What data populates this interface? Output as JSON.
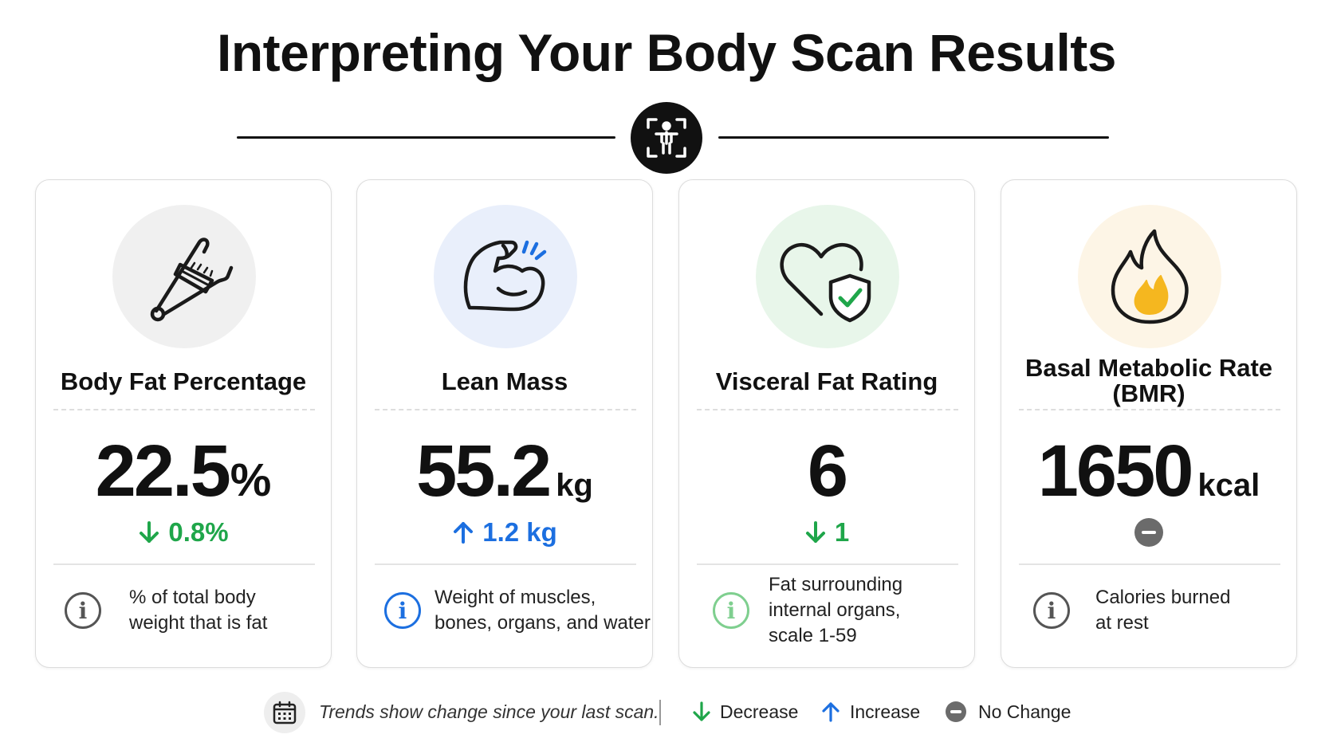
{
  "title": "Interpreting Your Body Scan Results",
  "header_icon": "body-scan-icon",
  "cards": [
    {
      "title": "Body Fat Percentage",
      "value": "22.5",
      "unit": "%",
      "trend_direction": "decrease",
      "trend_text": "0.8%",
      "icon": "caliper-icon",
      "icon_bg": "#f0f0f0",
      "description_lines": [
        "% of total body",
        "weight that is fat"
      ],
      "info_color": "#555555"
    },
    {
      "title": "Lean Mass",
      "value": "55.2",
      "unit": "kg",
      "trend_direction": "increase",
      "trend_text": "1.2 kg",
      "icon": "flexed-bicep-icon",
      "icon_bg": "#e9effb",
      "description_lines": [
        "Weight of muscles,",
        "bones, organs, and water"
      ],
      "info_color": "#1c6fe0"
    },
    {
      "title": "Visceral Fat Rating",
      "value": "6",
      "unit": "",
      "trend_direction": "decrease",
      "trend_text": "1",
      "icon": "heart-shield-icon",
      "icon_bg": "#e8f6ea",
      "description_lines": [
        "Fat surrounding",
        "internal organs,",
        "scale 1-59"
      ],
      "info_color": "#7fcf8f"
    },
    {
      "title_lines": [
        "Basal Metabolic Rate",
        "(BMR)"
      ],
      "value": "1650",
      "unit": "kcal",
      "trend_direction": "no-change",
      "trend_text": "",
      "icon": "flame-icon",
      "icon_bg": "#fdf5e6",
      "description_lines": [
        "Calories burned",
        "at rest"
      ],
      "info_color": "#555555"
    }
  ],
  "legend": {
    "note": "Trends show change since your last scan.",
    "decrease": "Decrease",
    "increase": "Increase",
    "no_change": "No Change",
    "colors": {
      "decrease": "#1fa64a",
      "increase": "#1c6fe0",
      "no_change": "#6b6b6b"
    }
  }
}
